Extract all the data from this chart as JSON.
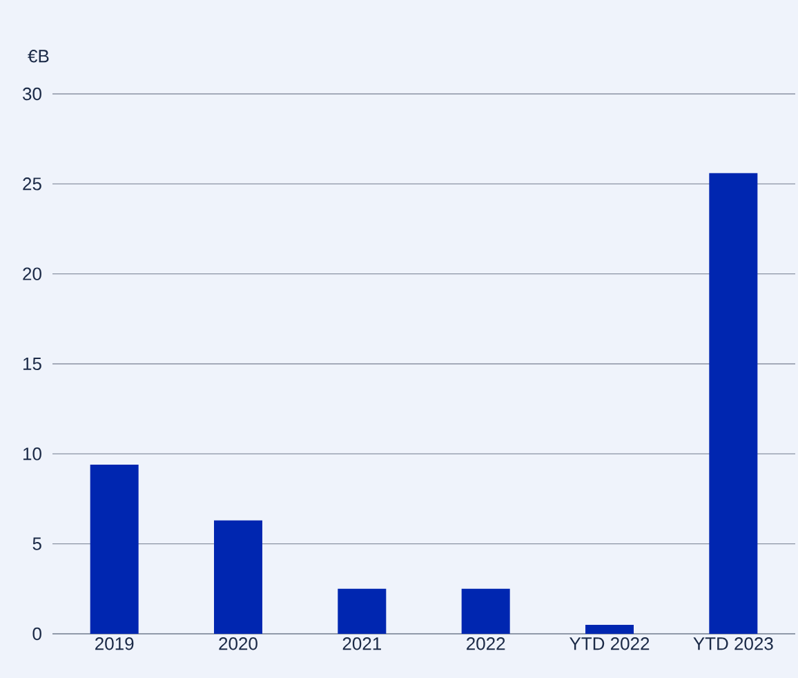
{
  "chart_data": {
    "type": "bar",
    "ylabel": "€B",
    "categories": [
      "2019",
      "2020",
      "2021",
      "2022",
      "YTD 2022",
      "YTD 2023"
    ],
    "values": [
      9.4,
      6.3,
      2.5,
      2.5,
      0.5,
      25.6
    ],
    "color": "#0026b0",
    "ylim": [
      0,
      30
    ],
    "yticks": [
      0,
      5,
      10,
      15,
      20,
      25,
      30
    ],
    "grid": "y"
  }
}
